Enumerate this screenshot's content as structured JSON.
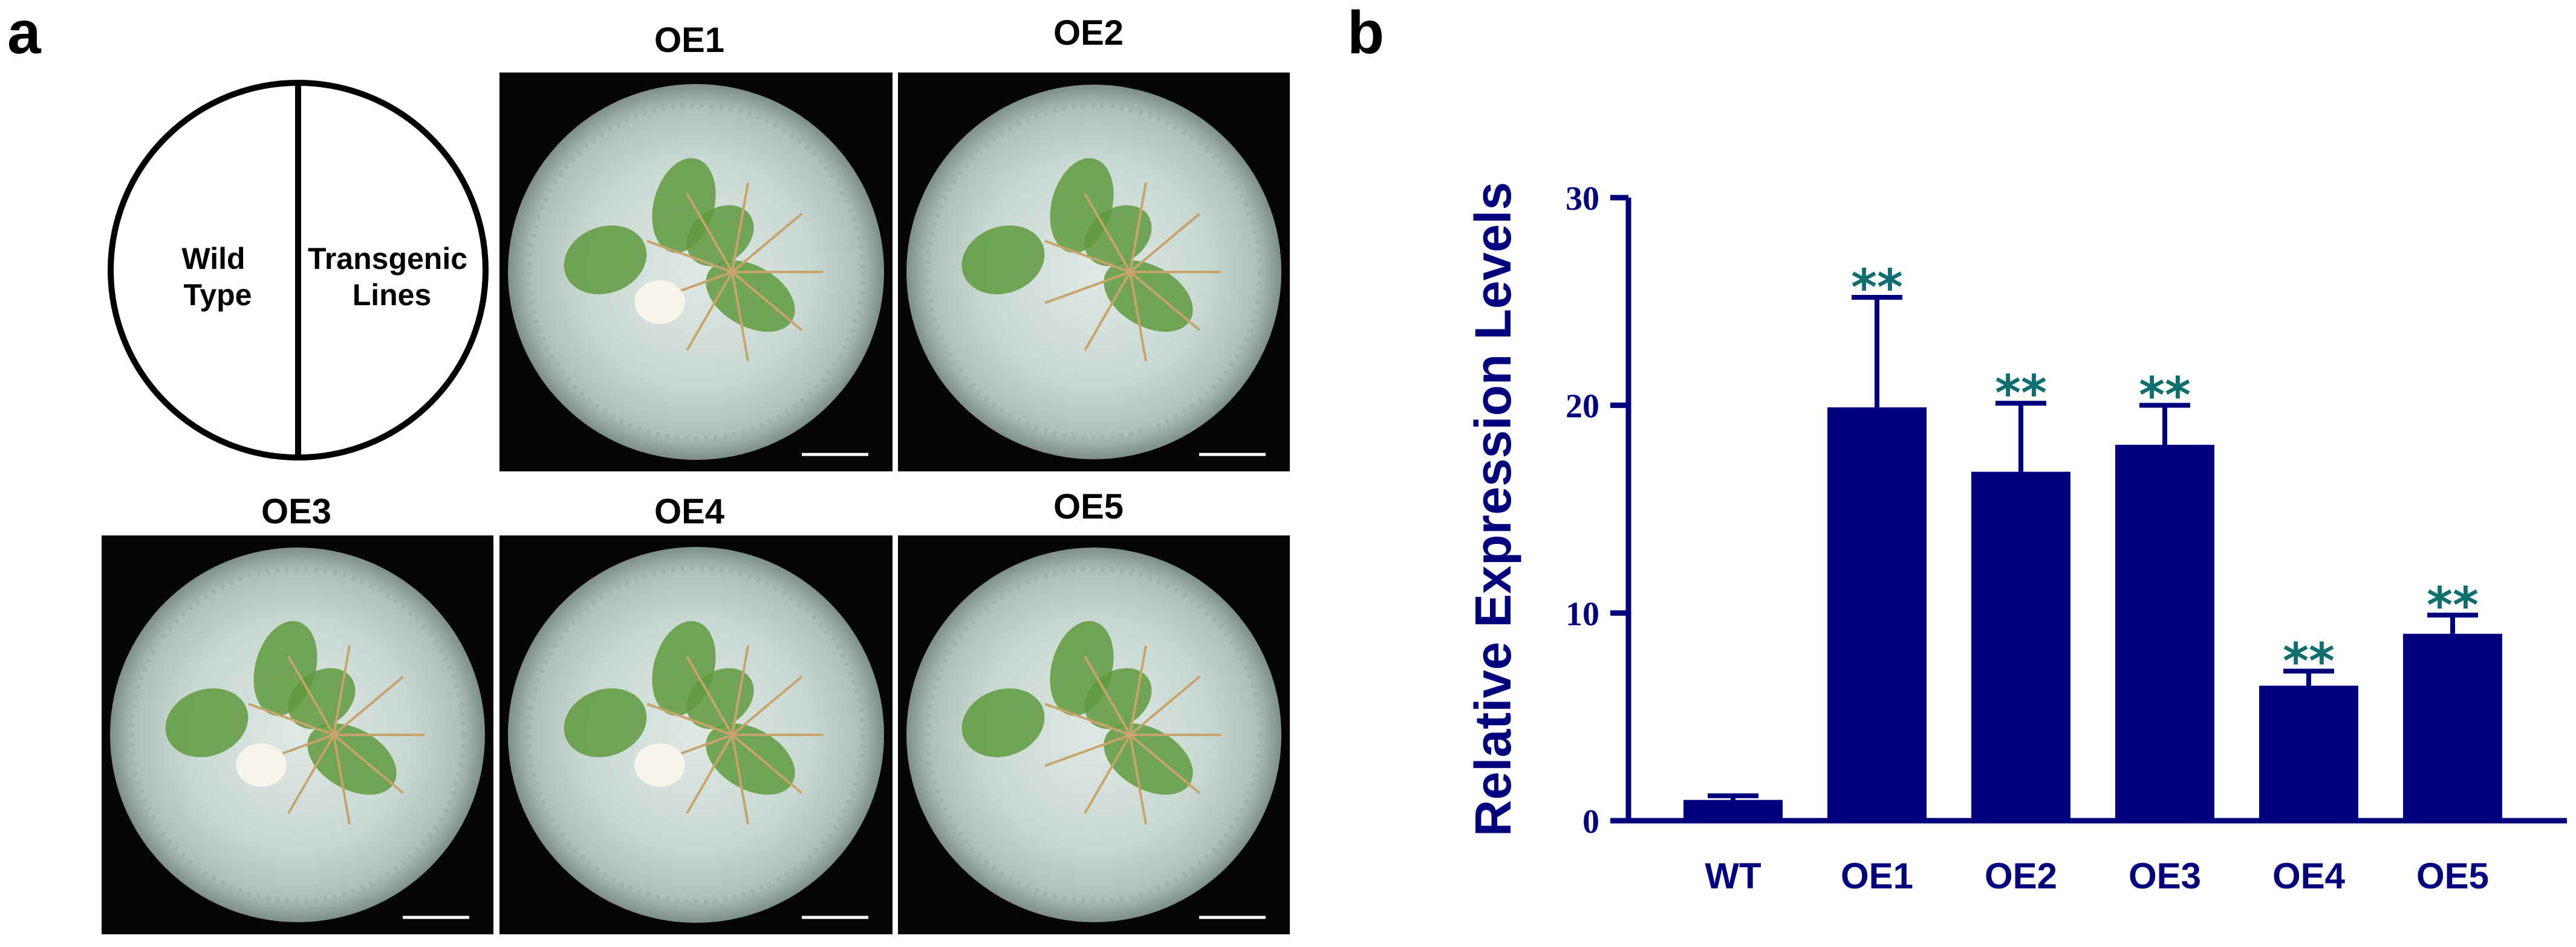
{
  "panel_a": {
    "label": "a",
    "diagram": {
      "left_label": "Wild\nType",
      "right_label": "Transgenic\nLines"
    },
    "photos": [
      {
        "label": "OE1"
      },
      {
        "label": "OE2"
      },
      {
        "label": "OE3"
      },
      {
        "label": "OE4"
      },
      {
        "label": "OE5"
      }
    ]
  },
  "panel_b": {
    "label": "b"
  },
  "chart_data": {
    "type": "bar",
    "categories": [
      "WT",
      "OE1",
      "OE2",
      "OE3",
      "OE4",
      "OE5"
    ],
    "values": [
      1.0,
      19.9,
      16.8,
      18.1,
      6.5,
      9.0
    ],
    "errors": [
      0.2,
      5.3,
      3.3,
      1.9,
      0.7,
      0.9
    ],
    "significance": [
      "",
      "**",
      "**",
      "**",
      "**",
      "**"
    ],
    "ylabel": "Relative Expression Levels",
    "xlabel": "",
    "ylim": [
      0,
      30
    ],
    "yticks": [
      0,
      10,
      20,
      30
    ],
    "grid": false,
    "colors": {
      "bar": "#00007f",
      "axis": "#00007f",
      "star": "#0f6e6e"
    }
  }
}
